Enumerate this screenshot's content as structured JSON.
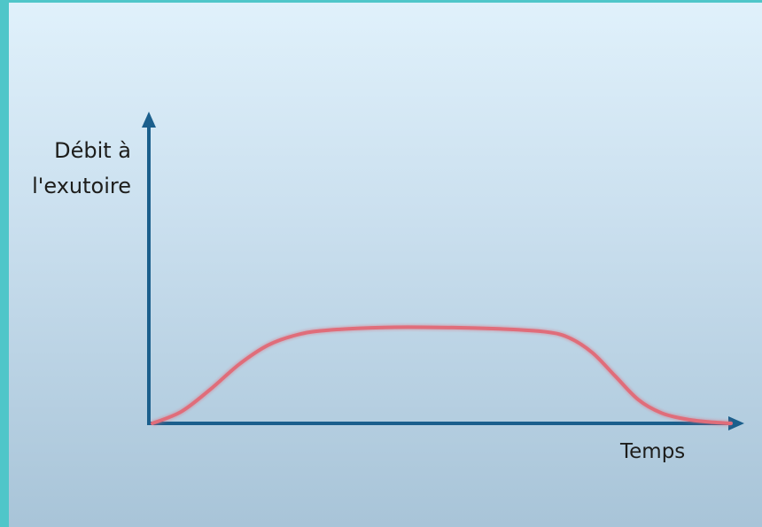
{
  "chart_data": {
    "type": "line",
    "title": "",
    "xlabel": "Temps",
    "ylabel_lines": [
      "Débit à",
      "l'exutoire"
    ],
    "x": [
      0,
      5,
      10,
      15,
      20,
      25,
      30,
      40,
      50,
      60,
      68,
      72,
      76,
      80,
      84,
      88,
      92,
      96,
      100
    ],
    "y": [
      0,
      8,
      23,
      40,
      53,
      60,
      63,
      65,
      65,
      64,
      62,
      58,
      48,
      32,
      16,
      7,
      3,
      1,
      0
    ],
    "xlim": [
      0,
      100
    ],
    "ylim": [
      0,
      210
    ],
    "grid": false,
    "legend": "none",
    "axis_color": "#1b5f8c",
    "curve_color": "#e06d7a"
  }
}
